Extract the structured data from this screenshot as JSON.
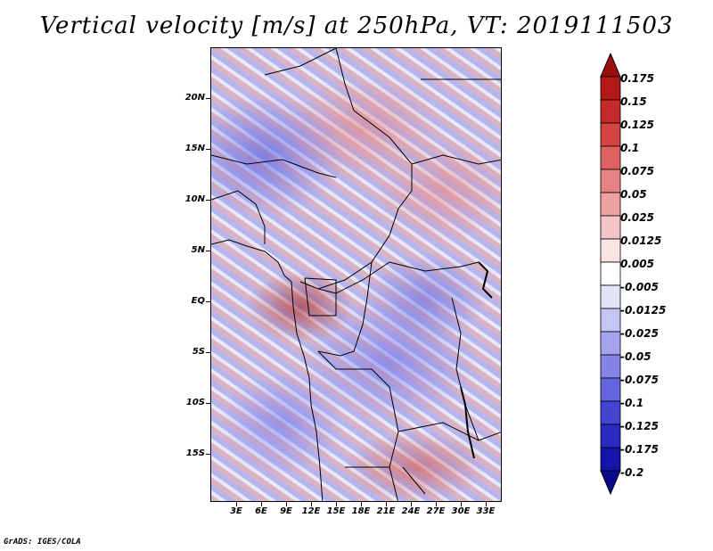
{
  "title": "Vertical velocity [m/s] at 250hPa, VT: 2019111503",
  "y_ticks": [
    "20N",
    "15N",
    "10N",
    "5N",
    "EQ",
    "5S",
    "10S",
    "15S"
  ],
  "x_ticks": [
    "3E",
    "6E",
    "9E",
    "12E",
    "15E",
    "18E",
    "21E",
    "24E",
    "27E",
    "30E",
    "33E"
  ],
  "colorbar": {
    "labels": [
      "0.175",
      "0.15",
      "0.125",
      "0.1",
      "0.075",
      "0.05",
      "0.025",
      "0.0125",
      "0.005",
      "-0.005",
      "-0.0125",
      "-0.025",
      "-0.05",
      "-0.075",
      "-0.1",
      "-0.125",
      "-0.175",
      "-0.2"
    ],
    "colors": [
      "#9b0d0d",
      "#b21818",
      "#c52a2a",
      "#d44444",
      "#de6262",
      "#e78282",
      "#eea2a2",
      "#f5c6c6",
      "#fae3e3",
      "#ffffff",
      "#e3e3fa",
      "#c6c6f5",
      "#a4a4ee",
      "#8484e6",
      "#6464de",
      "#4444d2",
      "#2a2ac2",
      "#1414a8",
      "#0a0a8a"
    ]
  },
  "footer": "GrADS: IGES/COLA"
}
